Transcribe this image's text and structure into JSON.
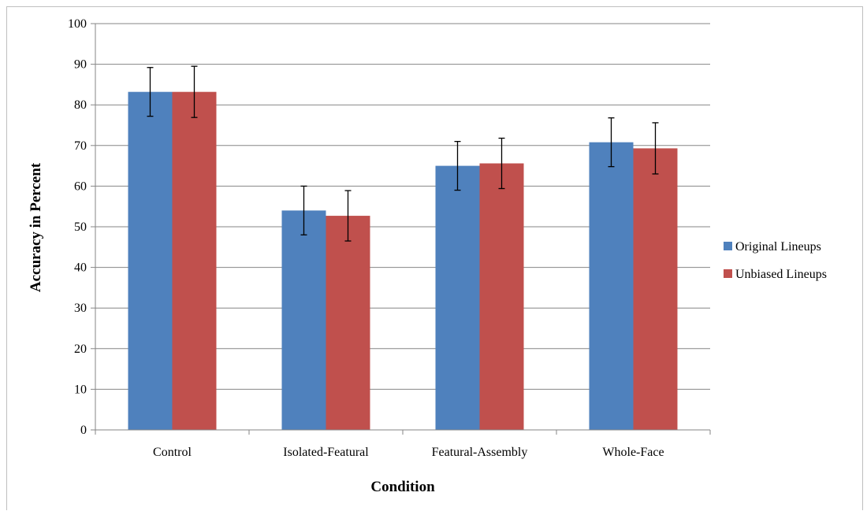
{
  "chart_data": {
    "type": "bar",
    "title": "",
    "xlabel": "Condition",
    "ylabel": "Accuracy in Percent",
    "ylim": [
      0,
      100
    ],
    "yticks": [
      0,
      10,
      20,
      30,
      40,
      50,
      60,
      70,
      80,
      90,
      100
    ],
    "categories": [
      "Control",
      "Isolated-Featural",
      "Featural-Assembly",
      "Whole-Face"
    ],
    "series": [
      {
        "name": "Original Lineups",
        "color": "#4f81bd",
        "values": [
          83.2,
          54.0,
          65.0,
          70.8
        ],
        "error": [
          6.0,
          6.0,
          6.0,
          6.0
        ]
      },
      {
        "name": "Unbiased Lineups",
        "color": "#c0504d",
        "values": [
          83.2,
          52.7,
          65.6,
          69.3
        ],
        "error": [
          6.3,
          6.2,
          6.2,
          6.3
        ]
      }
    ],
    "grid": true,
    "legend_position": "right"
  }
}
